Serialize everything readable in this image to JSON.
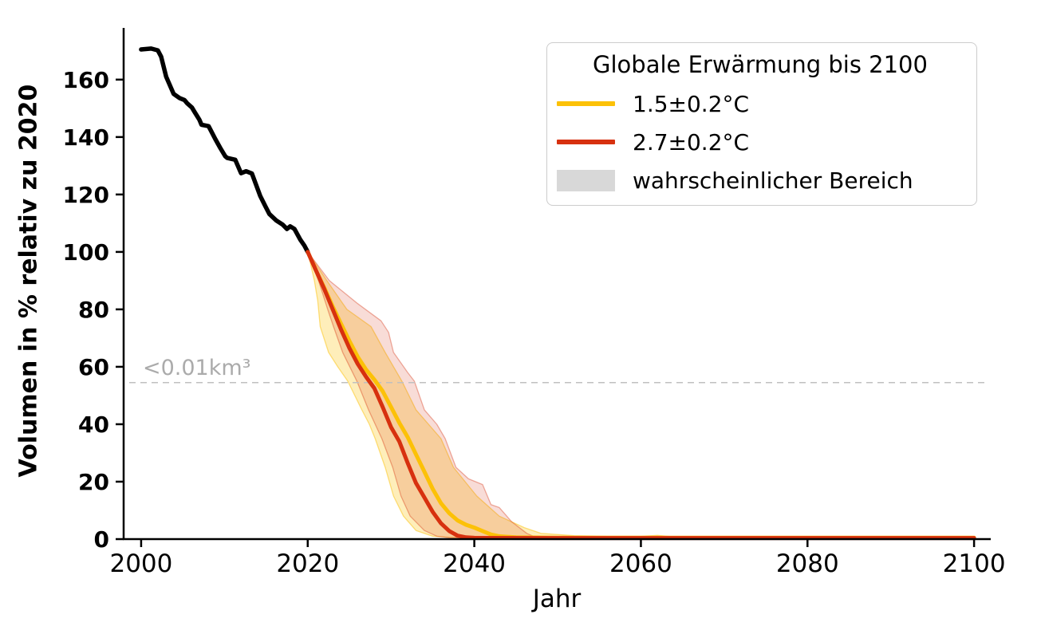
{
  "figure": {
    "xlabel": "Jahr",
    "ylabel": "Volumen in % relativ zu 2020",
    "annotation": "<0.01km³"
  },
  "legend": {
    "title": "Globale Erwärmung bis 2100",
    "items": [
      {
        "label": "1.5±0.2°C",
        "type": "line",
        "color": "#fcc107"
      },
      {
        "label": "2.7±0.2°C",
        "type": "line",
        "color": "#d7310f"
      },
      {
        "label": "wahrscheinlicher Bereich",
        "type": "patch",
        "color": "#d8d8d8"
      }
    ]
  },
  "chart_data": {
    "type": "line",
    "title": "",
    "xlabel": "Jahr",
    "ylabel": "Volumen in % relativ zu 2020",
    "xlim": [
      1997.9,
      2102
    ],
    "ylim": [
      0,
      178
    ],
    "x_ticks": [
      2000,
      2020,
      2040,
      2060,
      2080,
      2100
    ],
    "y_ticks": [
      0,
      20,
      40,
      60,
      80,
      100,
      120,
      140,
      160
    ],
    "grid": false,
    "legend_position": "upper right",
    "threshold_line": {
      "value": 54.5,
      "label": "<0.01km³",
      "style": "dashed",
      "color": "#c0c0c0"
    },
    "series": [
      {
        "id": "historical",
        "color": "#000000",
        "width": 5.5,
        "points": [
          [
            2000,
            170.5
          ],
          [
            2001.2,
            170.8
          ],
          [
            2002,
            170.2
          ],
          [
            2002.4,
            168.0
          ],
          [
            2003,
            161.0
          ],
          [
            2003.9,
            155.0
          ],
          [
            2004.6,
            153.6
          ],
          [
            2005.2,
            152.9
          ],
          [
            2005.5,
            151.8
          ],
          [
            2006.1,
            150.3
          ],
          [
            2006.4,
            148.8
          ],
          [
            2007,
            146.0
          ],
          [
            2007.25,
            144.3
          ],
          [
            2008.1,
            143.8
          ],
          [
            2008.9,
            139.3
          ],
          [
            2009.5,
            136.2
          ],
          [
            2010.1,
            133.3
          ],
          [
            2010.35,
            132.7
          ],
          [
            2011.3,
            132.1
          ],
          [
            2012,
            127.4
          ],
          [
            2012.6,
            128.1
          ],
          [
            2013.3,
            127.3
          ],
          [
            2014.3,
            119.5
          ],
          [
            2014.9,
            116.0
          ],
          [
            2015.4,
            113.2
          ],
          [
            2016.2,
            111.0
          ],
          [
            2017,
            109.5
          ],
          [
            2017.5,
            108.0
          ],
          [
            2017.9,
            108.9
          ],
          [
            2018.4,
            108.0
          ],
          [
            2019.1,
            104.3
          ],
          [
            2019.6,
            102.2
          ],
          [
            2020,
            100.0
          ]
        ]
      },
      {
        "id": "warming-1.5C",
        "label": "1.5±0.2°C",
        "color": "#fcc107",
        "width": 5,
        "points": [
          [
            2020,
            100
          ],
          [
            2021,
            93.5
          ],
          [
            2022,
            87.5
          ],
          [
            2023,
            81
          ],
          [
            2024,
            75
          ],
          [
            2025,
            69
          ],
          [
            2026,
            63.5
          ],
          [
            2027,
            59
          ],
          [
            2028,
            55.5
          ],
          [
            2029,
            51.5
          ],
          [
            2030,
            46
          ],
          [
            2031,
            40.5
          ],
          [
            2032,
            35.5
          ],
          [
            2033,
            29.5
          ],
          [
            2034,
            23.5
          ],
          [
            2035,
            17.5
          ],
          [
            2036,
            12.5
          ],
          [
            2037,
            9
          ],
          [
            2038,
            6.5
          ],
          [
            2039,
            5
          ],
          [
            2040,
            4
          ],
          [
            2041,
            2.8
          ],
          [
            2042,
            1.6
          ],
          [
            2043,
            1
          ],
          [
            2044,
            0.8
          ],
          [
            2045,
            0.6
          ],
          [
            2050,
            0.5
          ],
          [
            2060,
            0.5
          ],
          [
            2070,
            0.5
          ],
          [
            2080,
            0.5
          ],
          [
            2090,
            0.5
          ],
          [
            2100,
            0.5
          ]
        ]
      },
      {
        "id": "warming-2.7C",
        "label": "2.7±0.2°C",
        "color": "#d7310f",
        "width": 5,
        "points": [
          [
            2020,
            100
          ],
          [
            2021,
            93.5
          ],
          [
            2022,
            87
          ],
          [
            2023,
            80
          ],
          [
            2024,
            73
          ],
          [
            2025,
            66.5
          ],
          [
            2026,
            61
          ],
          [
            2027,
            56.5
          ],
          [
            2028,
            52.5
          ],
          [
            2029,
            46
          ],
          [
            2030,
            39
          ],
          [
            2031,
            34
          ],
          [
            2032,
            26.5
          ],
          [
            2033,
            19.5
          ],
          [
            2034,
            14.5
          ],
          [
            2035,
            9.5
          ],
          [
            2036,
            5.5
          ],
          [
            2037,
            2.8
          ],
          [
            2038,
            1.2
          ],
          [
            2039,
            0.6
          ],
          [
            2040,
            0.45
          ],
          [
            2050,
            0.4
          ],
          [
            2060,
            0.4
          ],
          [
            2070,
            0.4
          ],
          [
            2080,
            0.4
          ],
          [
            2090,
            0.4
          ],
          [
            2100,
            0.4
          ]
        ]
      }
    ],
    "bands": [
      {
        "id": "likely-range-1.5C",
        "label": "wahrscheinlicher Bereich",
        "color": "#fcc107",
        "opacity": 0.28,
        "left": [
          [
            2020,
            100
          ],
          [
            2020.8,
            90
          ],
          [
            2021.2,
            83
          ],
          [
            2021.5,
            74
          ],
          [
            2022.5,
            65
          ],
          [
            2023.6,
            60
          ],
          [
            2024.8,
            55
          ],
          [
            2026.5,
            45
          ],
          [
            2027.4,
            40
          ],
          [
            2028.1,
            35
          ],
          [
            2029.3,
            25
          ],
          [
            2030.3,
            15
          ],
          [
            2031.5,
            8
          ],
          [
            2033,
            3
          ],
          [
            2035,
            1
          ],
          [
            2037,
            0.6
          ],
          [
            2040,
            0.45
          ]
        ],
        "right": [
          [
            2020,
            100
          ],
          [
            2022.3,
            90
          ],
          [
            2024.7,
            80
          ],
          [
            2027.6,
            74
          ],
          [
            2029.3,
            65
          ],
          [
            2031.3,
            55
          ],
          [
            2033,
            45
          ],
          [
            2034.5,
            40
          ],
          [
            2036,
            35
          ],
          [
            2037.5,
            25
          ],
          [
            2040.3,
            15
          ],
          [
            2043,
            8
          ],
          [
            2046,
            4
          ],
          [
            2048,
            2
          ],
          [
            2052,
            1.2
          ],
          [
            2056,
            1
          ],
          [
            2060,
            1
          ],
          [
            2062,
            1.3
          ],
          [
            2064,
            0.8
          ],
          [
            2065,
            0.5
          ]
        ]
      },
      {
        "id": "likely-range-2.7C",
        "label": "wahrscheinlicher Bereich",
        "color": "#d7310f",
        "opacity": 0.17,
        "left": [
          [
            2020,
            100
          ],
          [
            2021.3,
            90
          ],
          [
            2022.4,
            80
          ],
          [
            2023.1,
            74
          ],
          [
            2024.2,
            65
          ],
          [
            2025.9,
            55
          ],
          [
            2027.3,
            45
          ],
          [
            2028.9,
            35
          ],
          [
            2030.2,
            25
          ],
          [
            2031.2,
            15
          ],
          [
            2032.3,
            8
          ],
          [
            2034,
            3
          ],
          [
            2035.5,
            1
          ],
          [
            2037,
            0.5
          ]
        ],
        "right": [
          [
            2020,
            100
          ],
          [
            2022.6,
            90
          ],
          [
            2026,
            82
          ],
          [
            2028.8,
            76
          ],
          [
            2029.7,
            72
          ],
          [
            2030.3,
            65
          ],
          [
            2032,
            58
          ],
          [
            2032.8,
            55
          ],
          [
            2034,
            45
          ],
          [
            2035.5,
            40
          ],
          [
            2036.5,
            35
          ],
          [
            2037.8,
            25
          ],
          [
            2039.3,
            21
          ],
          [
            2041,
            19
          ],
          [
            2042,
            12
          ],
          [
            2043,
            11
          ],
          [
            2044.5,
            6
          ],
          [
            2046.3,
            2
          ],
          [
            2047.5,
            0.5
          ]
        ]
      }
    ]
  }
}
